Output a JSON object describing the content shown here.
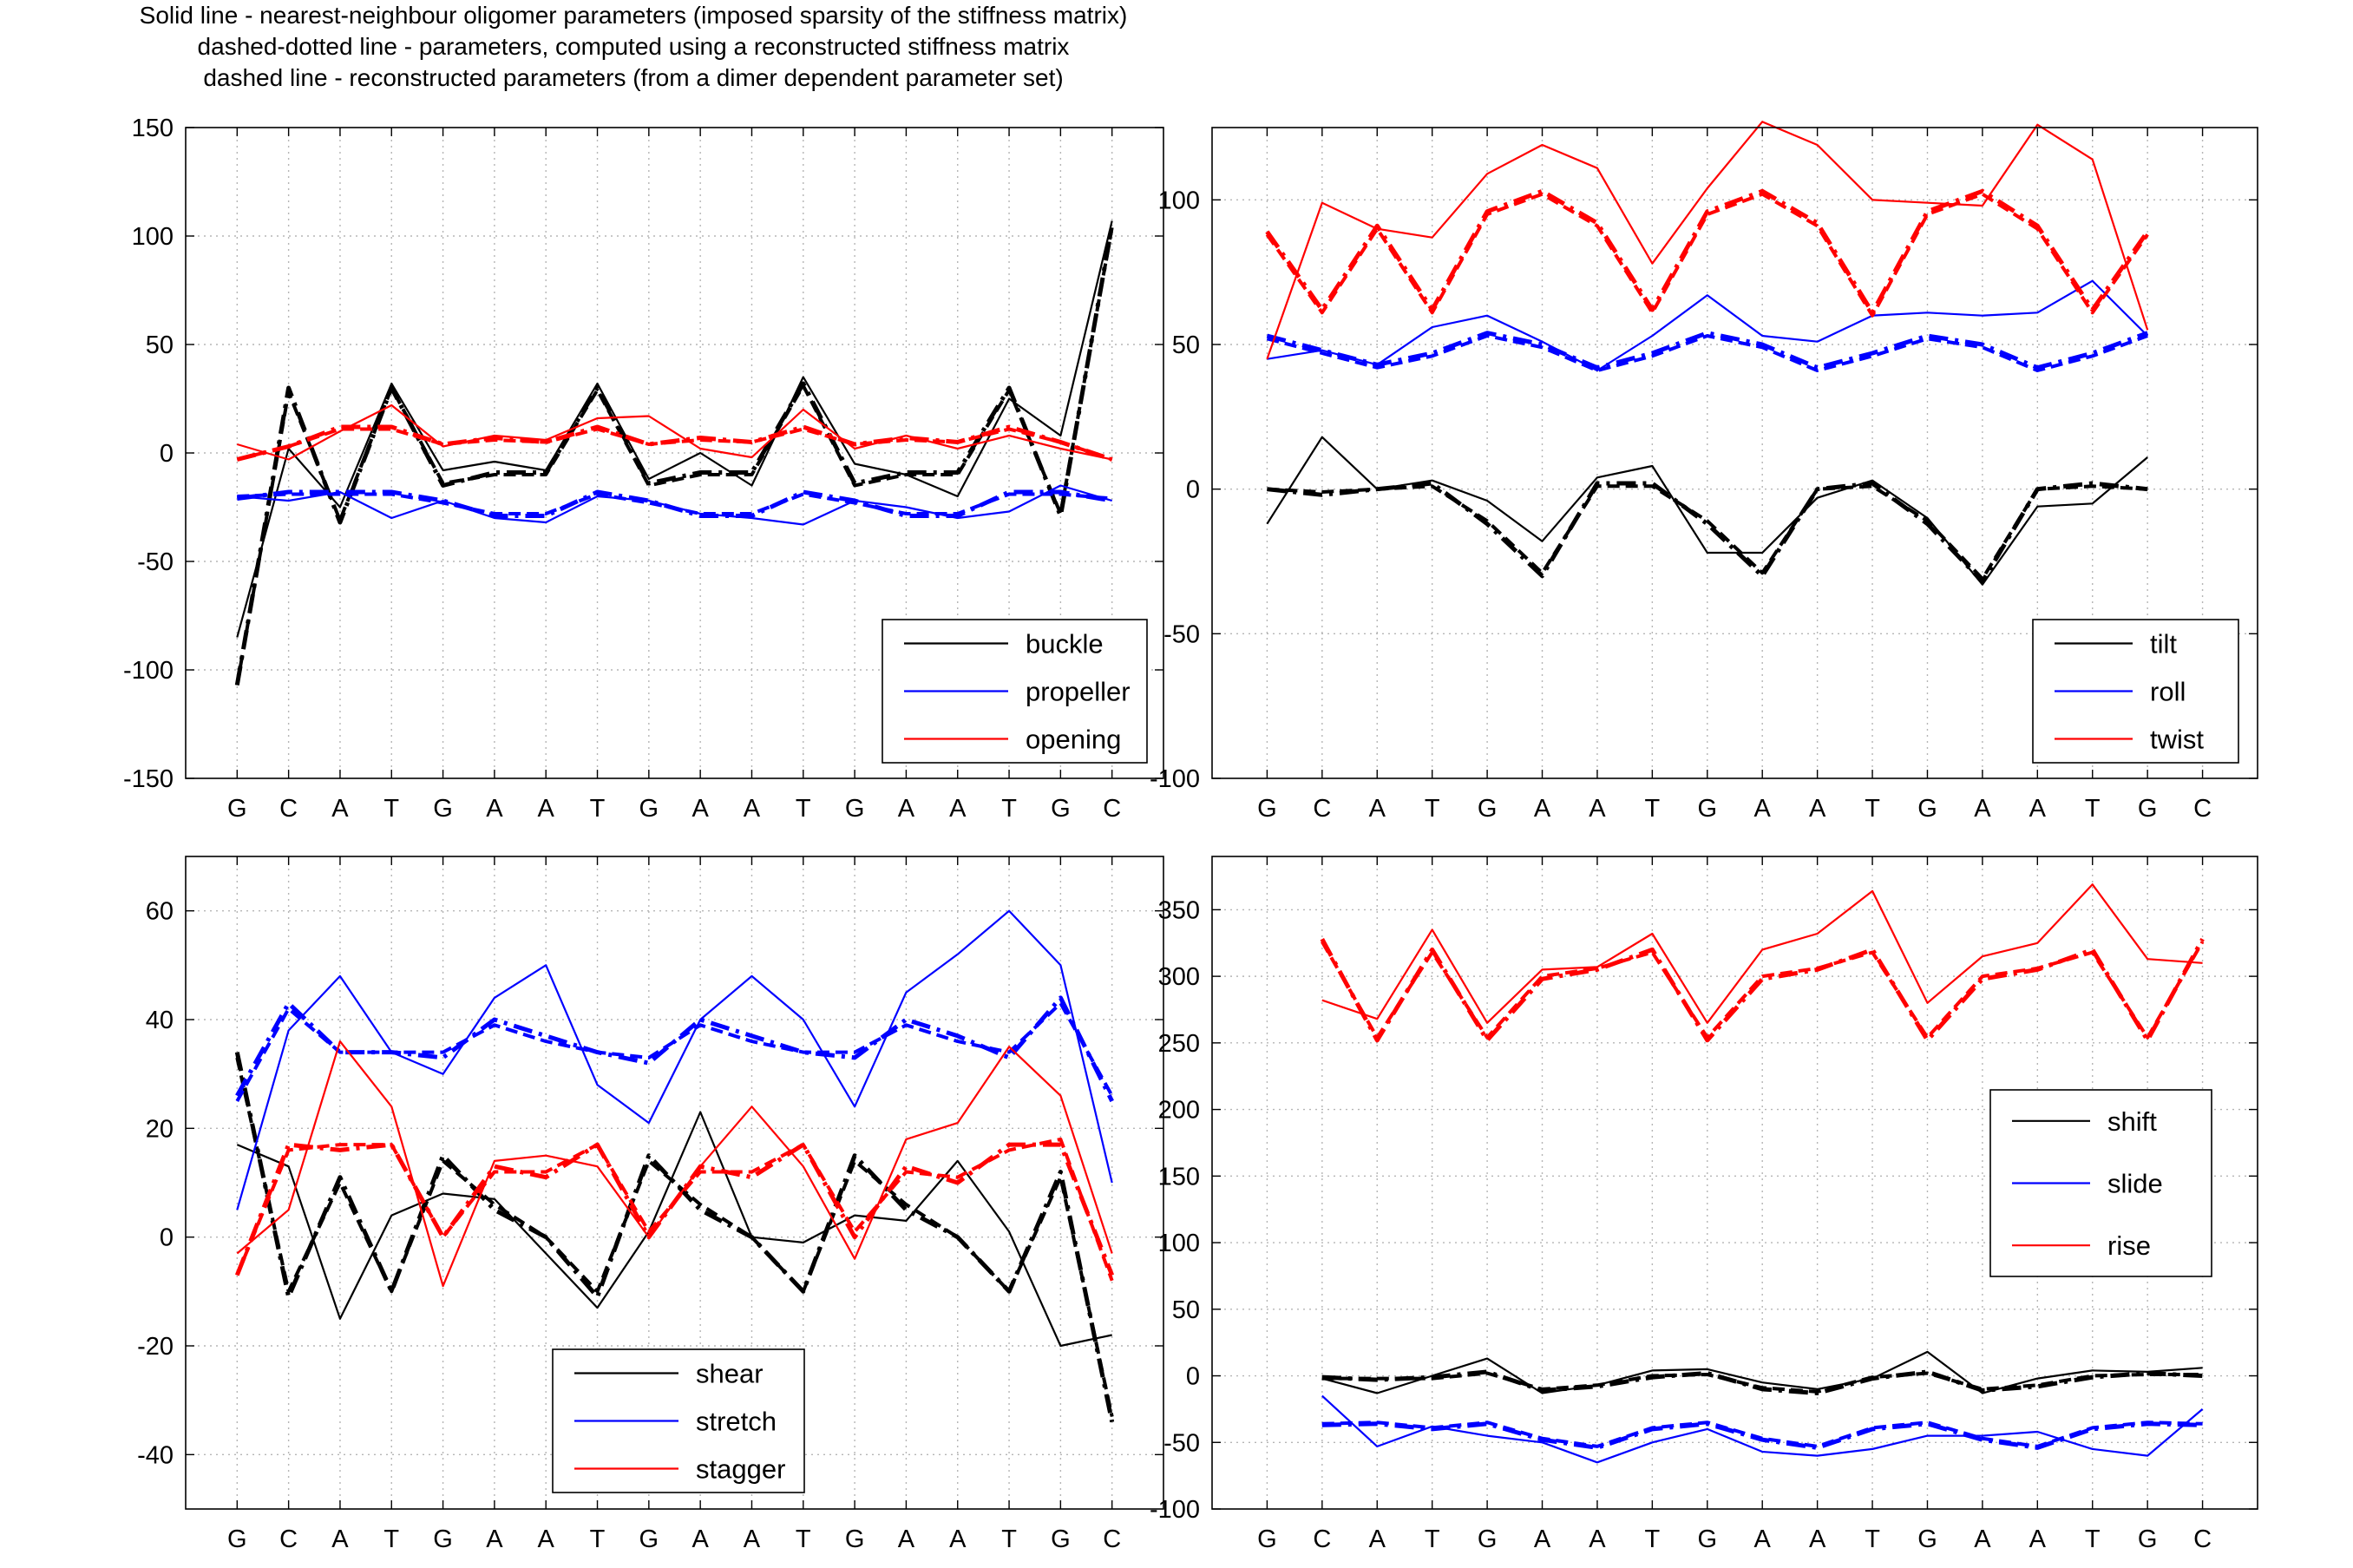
{
  "title_lines": [
    "Solid line - nearest-neighbour oligomer parameters (imposed sparsity of the stiffness matrix)",
    "dashed-dotted line - parameters, computed using a reconstructed stiffness matrix",
    "dashed line - reconstructed parameters (from a dimer dependent parameter set)"
  ],
  "chart_data": [
    {
      "type": "line",
      "categories": [
        "G",
        "C",
        "A",
        "T",
        "G",
        "A",
        "A",
        "T",
        "G",
        "A",
        "A",
        "T",
        "G",
        "A",
        "A",
        "T",
        "G",
        "C"
      ],
      "ylim": [
        -150,
        150
      ],
      "yticks": [
        -150,
        -100,
        -50,
        0,
        50,
        100,
        150
      ],
      "xlabel": "",
      "ylabel": "",
      "grid": true,
      "legend_position": "lower-right",
      "legend": [
        "buckle",
        "propeller",
        "opening"
      ],
      "series": [
        {
          "name": "buckle",
          "color": "#000000",
          "style": "solid",
          "values": [
            -85,
            2,
            -25,
            32,
            -8,
            -4,
            -8,
            32,
            -12,
            0,
            -15,
            35,
            -5,
            -10,
            -20,
            25,
            8,
            107
          ]
        },
        {
          "name": "buckle",
          "color": "#000000",
          "style": "dashdot",
          "values": [
            -107,
            30,
            -32,
            30,
            -15,
            -9,
            -9,
            30,
            -14,
            -9,
            -9,
            32,
            -14,
            -9,
            -9,
            30,
            -29,
            105
          ]
        },
        {
          "name": "buckle",
          "color": "#000000",
          "style": "dashed",
          "values": [
            -107,
            28,
            -31,
            30,
            -14,
            -10,
            -10,
            29,
            -15,
            -10,
            -10,
            31,
            -15,
            -10,
            -10,
            29,
            -28,
            104
          ]
        },
        {
          "name": "propeller",
          "color": "#0000ff",
          "style": "solid",
          "values": [
            -20,
            -22,
            -18,
            -30,
            -22,
            -30,
            -32,
            -20,
            -22,
            -28,
            -30,
            -33,
            -22,
            -25,
            -30,
            -27,
            -15,
            -22
          ]
        },
        {
          "name": "propeller",
          "color": "#0000ff",
          "style": "dashdot",
          "values": [
            -21,
            -18,
            -18,
            -18,
            -22,
            -29,
            -29,
            -18,
            -22,
            -29,
            -29,
            -18,
            -22,
            -29,
            -29,
            -18,
            -18,
            -22
          ]
        },
        {
          "name": "propeller",
          "color": "#0000ff",
          "style": "dashed",
          "values": [
            -20,
            -19,
            -19,
            -19,
            -23,
            -28,
            -28,
            -19,
            -23,
            -28,
            -28,
            -19,
            -23,
            -28,
            -28,
            -19,
            -19,
            -21
          ]
        },
        {
          "name": "opening",
          "color": "#ff0000",
          "style": "solid",
          "values": [
            4,
            -3,
            10,
            22,
            3,
            8,
            6,
            16,
            17,
            2,
            -2,
            20,
            2,
            8,
            2,
            8,
            2,
            -3
          ]
        },
        {
          "name": "opening",
          "color": "#ff0000",
          "style": "dashdot",
          "values": [
            -3,
            3,
            12,
            12,
            4,
            7,
            5,
            12,
            4,
            7,
            5,
            12,
            4,
            7,
            5,
            12,
            5,
            -3
          ]
        },
        {
          "name": "opening",
          "color": "#ff0000",
          "style": "dashed",
          "values": [
            -3,
            3,
            11,
            11,
            4,
            6,
            5,
            11,
            4,
            6,
            5,
            11,
            4,
            6,
            5,
            11,
            5,
            -3
          ]
        }
      ]
    },
    {
      "type": "line",
      "categories": [
        "G",
        "C",
        "A",
        "T",
        "G",
        "A",
        "A",
        "T",
        "G",
        "A",
        "A",
        "T",
        "G",
        "A",
        "A",
        "T",
        "G",
        "C"
      ],
      "ylim": [
        -100,
        125
      ],
      "yticks": [
        -100,
        -50,
        0,
        50,
        100
      ],
      "xlabel": "",
      "ylabel": "",
      "grid": true,
      "legend_position": "lower-right",
      "legend": [
        "tilt",
        "roll",
        "twist"
      ],
      "series": [
        {
          "name": "tilt",
          "color": "#000000",
          "style": "solid",
          "values": [
            -12,
            18,
            0,
            3,
            -4,
            -18,
            4,
            8,
            -22,
            -22,
            -3,
            3,
            -10,
            -33,
            -6,
            -5,
            11,
            null
          ]
        },
        {
          "name": "tilt",
          "color": "#000000",
          "style": "dashdot",
          "values": [
            0,
            -2,
            0,
            2,
            -12,
            -30,
            2,
            2,
            -12,
            -30,
            0,
            2,
            -12,
            -32,
            0,
            2,
            0,
            null
          ]
        },
        {
          "name": "tilt",
          "color": "#000000",
          "style": "dashed",
          "values": [
            0,
            -1,
            0,
            1,
            -11,
            -29,
            1,
            1,
            -11,
            -29,
            0,
            1,
            -11,
            -31,
            0,
            1,
            0,
            null
          ]
        },
        {
          "name": "roll",
          "color": "#0000ff",
          "style": "solid",
          "values": [
            45,
            48,
            43,
            56,
            60,
            51,
            41,
            53,
            67,
            53,
            51,
            60,
            61,
            60,
            61,
            72,
            53,
            null
          ]
        },
        {
          "name": "roll",
          "color": "#0000ff",
          "style": "dashdot",
          "values": [
            53,
            48,
            43,
            47,
            54,
            50,
            42,
            47,
            54,
            50,
            42,
            47,
            53,
            50,
            42,
            47,
            54,
            null
          ]
        },
        {
          "name": "roll",
          "color": "#0000ff",
          "style": "dashed",
          "values": [
            52,
            47,
            42,
            46,
            53,
            49,
            41,
            46,
            53,
            49,
            41,
            46,
            52,
            49,
            41,
            46,
            53,
            null
          ]
        },
        {
          "name": "twist",
          "color": "#ff0000",
          "style": "solid",
          "values": [
            45,
            99,
            90,
            87,
            109,
            119,
            111,
            78,
            104,
            127,
            119,
            100,
            99,
            98,
            126,
            114,
            55,
            null
          ]
        },
        {
          "name": "twist",
          "color": "#ff0000",
          "style": "dashdot",
          "values": [
            89,
            62,
            91,
            62,
            96,
            103,
            92,
            62,
            96,
            103,
            92,
            61,
            96,
            103,
            91,
            62,
            89,
            null
          ]
        },
        {
          "name": "twist",
          "color": "#ff0000",
          "style": "dashed",
          "values": [
            88,
            61,
            90,
            61,
            95,
            102,
            91,
            61,
            95,
            102,
            91,
            60,
            95,
            102,
            90,
            61,
            88,
            null
          ]
        }
      ]
    },
    {
      "type": "line",
      "categories": [
        "G",
        "C",
        "A",
        "T",
        "G",
        "A",
        "A",
        "T",
        "G",
        "A",
        "A",
        "T",
        "G",
        "A",
        "A",
        "T",
        "G",
        "C"
      ],
      "ylim": [
        -50,
        70
      ],
      "yticks": [
        -40,
        -20,
        0,
        20,
        40,
        60
      ],
      "xlabel": "",
      "ylabel": "",
      "grid": true,
      "legend_position": "lower-center",
      "legend": [
        "shear",
        "stretch",
        "stagger"
      ],
      "series": [
        {
          "name": "shear",
          "color": "#000000",
          "style": "solid",
          "values": [
            17,
            13,
            -15,
            4,
            8,
            7,
            -3,
            -13,
            1,
            23,
            0,
            -1,
            4,
            3,
            14,
            1,
            -20,
            -18
          ]
        },
        {
          "name": "shear",
          "color": "#000000",
          "style": "dashdot",
          "values": [
            34,
            -11,
            11,
            -10,
            15,
            5,
            0,
            -11,
            15,
            5,
            0,
            -10,
            15,
            5,
            0,
            -10,
            12,
            -34
          ]
        },
        {
          "name": "shear",
          "color": "#000000",
          "style": "dashed",
          "values": [
            33,
            -10,
            10,
            -10,
            14,
            6,
            0,
            -10,
            14,
            6,
            0,
            -10,
            14,
            6,
            0,
            -10,
            11,
            -33
          ]
        },
        {
          "name": "stretch",
          "color": "#0000ff",
          "style": "solid",
          "values": [
            5,
            38,
            48,
            34,
            30,
            44,
            50,
            28,
            21,
            40,
            48,
            40,
            24,
            45,
            52,
            60,
            50,
            10
          ]
        },
        {
          "name": "stretch",
          "color": "#0000ff",
          "style": "dashdot",
          "values": [
            26,
            43,
            34,
            34,
            33,
            40,
            37,
            34,
            32,
            40,
            37,
            34,
            33,
            40,
            37,
            33,
            44,
            25
          ]
        },
        {
          "name": "stretch",
          "color": "#0000ff",
          "style": "dashed",
          "values": [
            25,
            42,
            34,
            34,
            34,
            39,
            36,
            34,
            33,
            39,
            36,
            34,
            34,
            39,
            36,
            34,
            43,
            26
          ]
        },
        {
          "name": "stagger",
          "color": "#ff0000",
          "style": "solid",
          "values": [
            -3,
            5,
            36,
            24,
            -9,
            14,
            15,
            13,
            0,
            13,
            24,
            13,
            -4,
            18,
            21,
            35,
            26,
            -3
          ]
        },
        {
          "name": "stagger",
          "color": "#ff0000",
          "style": "dashdot",
          "values": [
            -7,
            17,
            16,
            17,
            0,
            13,
            11,
            17,
            0,
            13,
            11,
            17,
            0,
            13,
            10,
            17,
            17,
            -7
          ]
        },
        {
          "name": "stagger",
          "color": "#ff0000",
          "style": "dashed",
          "values": [
            -7,
            16,
            17,
            17,
            0,
            12,
            12,
            17,
            1,
            12,
            12,
            17,
            1,
            12,
            11,
            16,
            18,
            -8
          ]
        }
      ]
    },
    {
      "type": "line",
      "categories": [
        "G",
        "C",
        "A",
        "T",
        "G",
        "A",
        "A",
        "T",
        "G",
        "A",
        "A",
        "T",
        "G",
        "A",
        "A",
        "T",
        "G",
        "C"
      ],
      "ylim": [
        -100,
        390
      ],
      "yticks": [
        -100,
        -50,
        0,
        50,
        100,
        150,
        200,
        250,
        300,
        350
      ],
      "xlabel": "",
      "ylabel": "",
      "grid": true,
      "legend_position": "center-right",
      "legend": [
        "shift",
        "slide",
        "rise"
      ],
      "series": [
        {
          "name": "shift",
          "color": "#000000",
          "style": "solid",
          "values": [
            null,
            -2,
            -13,
            0,
            13,
            -13,
            -7,
            4,
            5,
            -5,
            -10,
            -2,
            18,
            -13,
            -2,
            4,
            3,
            6
          ]
        },
        {
          "name": "shift",
          "color": "#000000",
          "style": "dashdot",
          "values": [
            null,
            -1,
            -3,
            -1,
            3,
            -11,
            -8,
            -1,
            2,
            -10,
            -13,
            -2,
            3,
            -11,
            -8,
            -1,
            2,
            0
          ]
        },
        {
          "name": "shift",
          "color": "#000000",
          "style": "dashed",
          "values": [
            null,
            -2,
            -2,
            -2,
            2,
            -10,
            -7,
            0,
            1,
            -9,
            -12,
            -1,
            2,
            -10,
            -7,
            0,
            1,
            1
          ]
        },
        {
          "name": "slide",
          "color": "#0000ff",
          "style": "solid",
          "values": [
            null,
            -15,
            -53,
            -38,
            -45,
            -50,
            -65,
            -50,
            -40,
            -57,
            -60,
            -55,
            -45,
            -45,
            -42,
            -55,
            -60,
            -25
          ]
        },
        {
          "name": "slide",
          "color": "#0000ff",
          "style": "dashdot",
          "values": [
            null,
            -37,
            -36,
            -40,
            -36,
            -48,
            -54,
            -40,
            -36,
            -48,
            -54,
            -40,
            -36,
            -48,
            -54,
            -40,
            -36,
            -37
          ]
        },
        {
          "name": "slide",
          "color": "#0000ff",
          "style": "dashed",
          "values": [
            null,
            -36,
            -35,
            -39,
            -35,
            -47,
            -53,
            -39,
            -35,
            -47,
            -53,
            -39,
            -35,
            -47,
            -53,
            -39,
            -35,
            -36
          ]
        },
        {
          "name": "rise",
          "color": "#ff0000",
          "style": "solid",
          "values": [
            null,
            282,
            268,
            335,
            265,
            305,
            307,
            332,
            265,
            320,
            332,
            364,
            280,
            315,
            325,
            369,
            313,
            310
          ]
        },
        {
          "name": "rise",
          "color": "#ff0000",
          "style": "dashdot",
          "values": [
            null,
            328,
            252,
            320,
            252,
            298,
            305,
            320,
            252,
            298,
            305,
            320,
            252,
            298,
            305,
            320,
            252,
            328
          ]
        },
        {
          "name": "rise",
          "color": "#ff0000",
          "style": "dashed",
          "values": [
            null,
            326,
            254,
            318,
            254,
            300,
            306,
            318,
            254,
            300,
            306,
            318,
            254,
            300,
            306,
            318,
            254,
            326
          ]
        }
      ]
    }
  ]
}
